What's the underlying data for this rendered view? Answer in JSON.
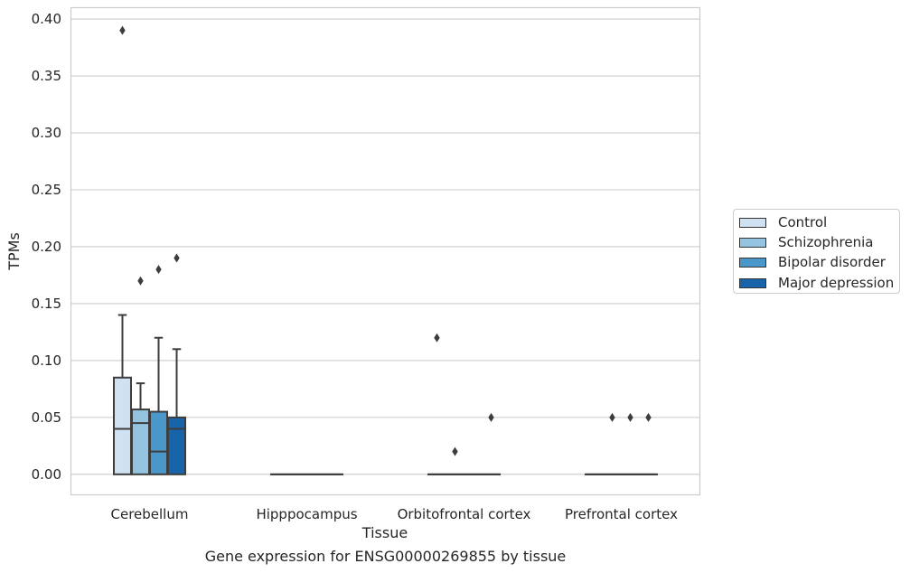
{
  "chart_data": {
    "type": "box",
    "caption": "Gene expression for ENSG00000269855 by tissue",
    "xlabel": "Tissue",
    "ylabel": "TPMs",
    "ylim": [
      -0.018,
      0.41
    ],
    "yticks": [
      0.0,
      0.05,
      0.1,
      0.15,
      0.2,
      0.25,
      0.3,
      0.35,
      0.4
    ],
    "ytick_labels": [
      "0.00",
      "0.05",
      "0.10",
      "0.15",
      "0.20",
      "0.25",
      "0.30",
      "0.35",
      "0.40"
    ],
    "grid": "horizontal",
    "legend_position": "center-right outside",
    "categories": [
      "Cerebellum",
      "Hipppocampus",
      "Orbitofrontal cortex",
      "Prefrontal cortex"
    ],
    "series": [
      {
        "name": "Control",
        "color": "#d0e1f2",
        "boxes": [
          {
            "whislo": 0.0,
            "q1": 0.0,
            "med": 0.04,
            "q3": 0.085,
            "whishi": 0.14,
            "fliers": [
              0.39
            ]
          },
          {
            "whislo": 0.0,
            "q1": 0.0,
            "med": 0.0,
            "q3": 0.0,
            "whishi": 0.0,
            "fliers": []
          },
          {
            "whislo": 0.0,
            "q1": 0.0,
            "med": 0.0,
            "q3": 0.0,
            "whishi": 0.0,
            "fliers": [
              0.12
            ]
          },
          {
            "whislo": 0.0,
            "q1": 0.0,
            "med": 0.0,
            "q3": 0.0,
            "whishi": 0.0,
            "fliers": []
          }
        ]
      },
      {
        "name": "Schizophrenia",
        "color": "#94c4df",
        "boxes": [
          {
            "whislo": 0.0,
            "q1": 0.0,
            "med": 0.045,
            "q3": 0.057,
            "whishi": 0.08,
            "fliers": [
              0.17
            ]
          },
          {
            "whislo": 0.0,
            "q1": 0.0,
            "med": 0.0,
            "q3": 0.0,
            "whishi": 0.0,
            "fliers": []
          },
          {
            "whislo": 0.0,
            "q1": 0.0,
            "med": 0.0,
            "q3": 0.0,
            "whishi": 0.0,
            "fliers": [
              0.02
            ]
          },
          {
            "whislo": 0.0,
            "q1": 0.0,
            "med": 0.0,
            "q3": 0.0,
            "whishi": 0.0,
            "fliers": [
              0.05
            ]
          }
        ]
      },
      {
        "name": "Bipolar disorder",
        "color": "#4a98c9",
        "boxes": [
          {
            "whislo": 0.0,
            "q1": 0.0,
            "med": 0.02,
            "q3": 0.055,
            "whishi": 0.12,
            "fliers": [
              0.18
            ]
          },
          {
            "whislo": 0.0,
            "q1": 0.0,
            "med": 0.0,
            "q3": 0.0,
            "whishi": 0.0,
            "fliers": []
          },
          {
            "whislo": 0.0,
            "q1": 0.0,
            "med": 0.0,
            "q3": 0.0,
            "whishi": 0.0,
            "fliers": []
          },
          {
            "whislo": 0.0,
            "q1": 0.0,
            "med": 0.0,
            "q3": 0.0,
            "whishi": 0.0,
            "fliers": [
              0.05
            ]
          }
        ]
      },
      {
        "name": "Major depression",
        "color": "#1764ab",
        "boxes": [
          {
            "whislo": 0.0,
            "q1": 0.0,
            "med": 0.04,
            "q3": 0.05,
            "whishi": 0.11,
            "fliers": [
              0.19
            ]
          },
          {
            "whislo": 0.0,
            "q1": 0.0,
            "med": 0.0,
            "q3": 0.0,
            "whishi": 0.0,
            "fliers": []
          },
          {
            "whislo": 0.0,
            "q1": 0.0,
            "med": 0.0,
            "q3": 0.0,
            "whishi": 0.0,
            "fliers": [
              0.05
            ]
          },
          {
            "whislo": 0.0,
            "q1": 0.0,
            "med": 0.0,
            "q3": 0.0,
            "whishi": 0.0,
            "fliers": [
              0.05
            ]
          }
        ]
      }
    ]
  }
}
